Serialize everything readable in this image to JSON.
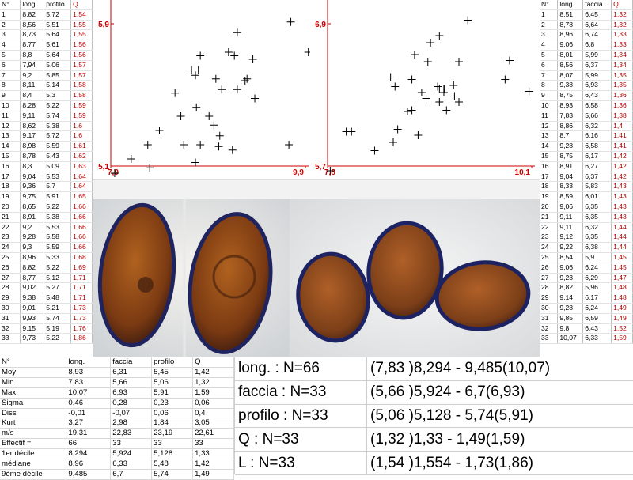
{
  "left_table": {
    "headers": [
      "N°",
      "long.",
      "profilo",
      "Q"
    ],
    "rows": [
      [
        "1",
        "8,82",
        "5,72",
        "1,54"
      ],
      [
        "2",
        "8,56",
        "5,51",
        "1,55"
      ],
      [
        "3",
        "8,73",
        "5,64",
        "1,55"
      ],
      [
        "4",
        "8,77",
        "5,61",
        "1,56"
      ],
      [
        "5",
        "8,8",
        "5,64",
        "1,56"
      ],
      [
        "6",
        "7,94",
        "5,06",
        "1,57"
      ],
      [
        "7",
        "9,2",
        "5,85",
        "1,57"
      ],
      [
        "8",
        "8,11",
        "5,14",
        "1,58"
      ],
      [
        "9",
        "8,4",
        "5,3",
        "1,58"
      ],
      [
        "10",
        "8,28",
        "5,22",
        "1,59"
      ],
      [
        "11",
        "9,11",
        "5,74",
        "1,59"
      ],
      [
        "12",
        "8,62",
        "5,38",
        "1,6"
      ],
      [
        "13",
        "9,17",
        "5,72",
        "1,6"
      ],
      [
        "14",
        "8,98",
        "5,59",
        "1,61"
      ],
      [
        "15",
        "8,78",
        "5,43",
        "1,62"
      ],
      [
        "16",
        "8,3",
        "5,09",
        "1,63"
      ],
      [
        "17",
        "9,04",
        "5,53",
        "1,64"
      ],
      [
        "18",
        "9,36",
        "5,7",
        "1,64"
      ],
      [
        "19",
        "9,75",
        "5,91",
        "1,65"
      ],
      [
        "20",
        "8,65",
        "5,22",
        "1,66"
      ],
      [
        "21",
        "8,91",
        "5,38",
        "1,66"
      ],
      [
        "22",
        "9,2",
        "5,53",
        "1,66"
      ],
      [
        "23",
        "9,28",
        "5,58",
        "1,66"
      ],
      [
        "24",
        "9,3",
        "5,59",
        "1,66"
      ],
      [
        "25",
        "8,96",
        "5,33",
        "1,68"
      ],
      [
        "26",
        "8,82",
        "5,22",
        "1,69"
      ],
      [
        "27",
        "8,77",
        "5,12",
        "1,71"
      ],
      [
        "28",
        "9,02",
        "5,27",
        "1,71"
      ],
      [
        "29",
        "9,38",
        "5,48",
        "1,71"
      ],
      [
        "30",
        "9,01",
        "5,21",
        "1,73"
      ],
      [
        "31",
        "9,93",
        "5,74",
        "1,73"
      ],
      [
        "32",
        "9,15",
        "5,19",
        "1,76"
      ],
      [
        "33",
        "9,73",
        "5,22",
        "1,86"
      ]
    ]
  },
  "right_table": {
    "headers": [
      "N°",
      "long.",
      "faccia.",
      "Q"
    ],
    "rows": [
      [
        "1",
        "8,51",
        "6,45",
        "1,32"
      ],
      [
        "2",
        "8,78",
        "6,64",
        "1,32"
      ],
      [
        "3",
        "8,96",
        "6,74",
        "1,33"
      ],
      [
        "4",
        "9,06",
        "6,8",
        "1,33"
      ],
      [
        "5",
        "8,01",
        "5,99",
        "1,34"
      ],
      [
        "6",
        "8,56",
        "6,37",
        "1,34"
      ],
      [
        "7",
        "8,07",
        "5,99",
        "1,35"
      ],
      [
        "8",
        "9,38",
        "6,93",
        "1,35"
      ],
      [
        "9",
        "8,75",
        "6,43",
        "1,36"
      ],
      [
        "10",
        "8,93",
        "6,58",
        "1,36"
      ],
      [
        "11",
        "7,83",
        "5,66",
        "1,38"
      ],
      [
        "12",
        "8,86",
        "6,32",
        "1,4"
      ],
      [
        "13",
        "8,7",
        "6,16",
        "1,41"
      ],
      [
        "14",
        "9,28",
        "6,58",
        "1,41"
      ],
      [
        "15",
        "8,75",
        "6,17",
        "1,42"
      ],
      [
        "16",
        "8,91",
        "6,27",
        "1,42"
      ],
      [
        "17",
        "9,04",
        "6,37",
        "1,42"
      ],
      [
        "18",
        "8,33",
        "5,83",
        "1,43"
      ],
      [
        "19",
        "8,59",
        "6,01",
        "1,43"
      ],
      [
        "20",
        "9,06",
        "6,35",
        "1,43"
      ],
      [
        "21",
        "9,11",
        "6,35",
        "1,43"
      ],
      [
        "22",
        "9,11",
        "6,32",
        "1,44"
      ],
      [
        "23",
        "9,12",
        "6,35",
        "1,44"
      ],
      [
        "24",
        "9,22",
        "6,38",
        "1,44"
      ],
      [
        "25",
        "8,54",
        "5,9",
        "1,45"
      ],
      [
        "26",
        "9,06",
        "6,24",
        "1,45"
      ],
      [
        "27",
        "9,23",
        "6,29",
        "1,47"
      ],
      [
        "28",
        "8,82",
        "5,96",
        "1,48"
      ],
      [
        "29",
        "9,14",
        "6,17",
        "1,48"
      ],
      [
        "30",
        "9,28",
        "6,24",
        "1,49"
      ],
      [
        "31",
        "9,85",
        "6,59",
        "1,49"
      ],
      [
        "32",
        "9,8",
        "6,43",
        "1,52"
      ],
      [
        "33",
        "10,07",
        "6,33",
        "1,59"
      ]
    ]
  },
  "chart_data": [
    {
      "type": "scatter",
      "xlabel": "",
      "ylabel": "",
      "x_ticks": [
        "7,9",
        "9,9"
      ],
      "y_ticks": [
        "5,9",
        "5,1"
      ],
      "xlim": [
        7.9,
        9.9
      ],
      "ylim": [
        5.1,
        5.9
      ],
      "marker": "plus",
      "x": [
        8.82,
        8.56,
        8.73,
        8.77,
        8.8,
        7.94,
        9.2,
        8.11,
        8.4,
        8.28,
        9.11,
        8.62,
        9.17,
        8.98,
        8.78,
        8.3,
        9.04,
        9.36,
        9.75,
        8.65,
        8.91,
        9.2,
        9.28,
        9.3,
        8.96,
        8.82,
        8.77,
        9.02,
        9.38,
        9.01,
        9.93,
        9.15,
        9.73
      ],
      "y": [
        5.72,
        5.51,
        5.64,
        5.61,
        5.64,
        5.06,
        5.85,
        5.14,
        5.3,
        5.22,
        5.74,
        5.38,
        5.72,
        5.59,
        5.43,
        5.09,
        5.53,
        5.7,
        5.91,
        5.22,
        5.38,
        5.53,
        5.58,
        5.59,
        5.33,
        5.22,
        5.12,
        5.27,
        5.48,
        5.21,
        5.74,
        5.19,
        5.22
      ]
    },
    {
      "type": "scatter",
      "xlabel": "",
      "ylabel": "",
      "x_ticks": [
        "7,8",
        "10,1"
      ],
      "y_ticks": [
        "6,9",
        "5,7"
      ],
      "xlim": [
        7.8,
        10.1
      ],
      "ylim": [
        5.7,
        6.9
      ],
      "marker": "plus",
      "x": [
        8.51,
        8.78,
        8.96,
        9.06,
        8.01,
        8.56,
        8.07,
        9.38,
        8.75,
        8.93,
        7.83,
        8.86,
        8.7,
        9.28,
        8.75,
        8.91,
        9.04,
        8.33,
        8.59,
        9.06,
        9.11,
        9.11,
        9.12,
        9.22,
        8.54,
        9.06,
        9.23,
        8.82,
        9.14,
        9.28,
        9.85,
        9.8,
        10.07
      ],
      "y": [
        6.45,
        6.64,
        6.74,
        6.8,
        5.99,
        6.37,
        5.99,
        6.93,
        6.43,
        6.58,
        5.66,
        6.32,
        6.16,
        6.58,
        6.17,
        6.27,
        6.37,
        5.83,
        6.01,
        6.35,
        6.35,
        6.32,
        6.35,
        6.38,
        5.9,
        6.24,
        6.29,
        5.96,
        6.17,
        6.24,
        6.59,
        6.43,
        6.33
      ]
    }
  ],
  "stats": {
    "headers": [
      "N°",
      "long.",
      "faccia",
      "profilo",
      "Q"
    ],
    "rows": [
      [
        "Moy",
        "8,93",
        "6,31",
        "5,45",
        "1,42"
      ],
      [
        "Min",
        "7,83",
        "5,66",
        "5,06",
        "1,32"
      ],
      [
        "Max",
        "10,07",
        "6,93",
        "5,91",
        "1,59"
      ],
      [
        "Sigma",
        "0,46",
        "0,28",
        "0,23",
        "0,06"
      ],
      [
        "Diss",
        "-0,01",
        "-0,07",
        "0,06",
        "0,4"
      ],
      [
        "Kurt",
        "3,27",
        "2,98",
        "1,84",
        "3,05"
      ],
      [
        "m/s",
        "19,31",
        "22,83",
        "23,19",
        "22,61"
      ],
      [
        "Effectif =",
        "66",
        "33",
        "33",
        "33"
      ],
      [
        "1er décile",
        "8,294",
        "5,924",
        "5,128",
        "1,33"
      ],
      [
        "médiane",
        "8,96",
        "6,33",
        "5,48",
        "1,42"
      ],
      [
        "9ème décile",
        "9,485",
        "6,7",
        "5,74",
        "1,49"
      ]
    ]
  },
  "summary": [
    {
      "label": "long. : N=66",
      "value": "(7,83 )8,294 - 9,485(10,07)"
    },
    {
      "label": "faccia : N=33",
      "value": "(5,66 )5,924 - 6,7(6,93)"
    },
    {
      "label": "profilo : N=33",
      "value": "(5,06 )5,128 - 5,74(5,91)"
    },
    {
      "label": "Q : N=33",
      "value": "(1,32 )1,33 - 1,49(1,59)"
    },
    {
      "label": "L : N=33",
      "value": "(1,54 )1,554 - 1,73(1,86)"
    }
  ],
  "colors": {
    "axis": "#cc0000",
    "q_text": "#b00000",
    "spore": "#7a3a12",
    "spore_edge": "#1b1f60"
  }
}
